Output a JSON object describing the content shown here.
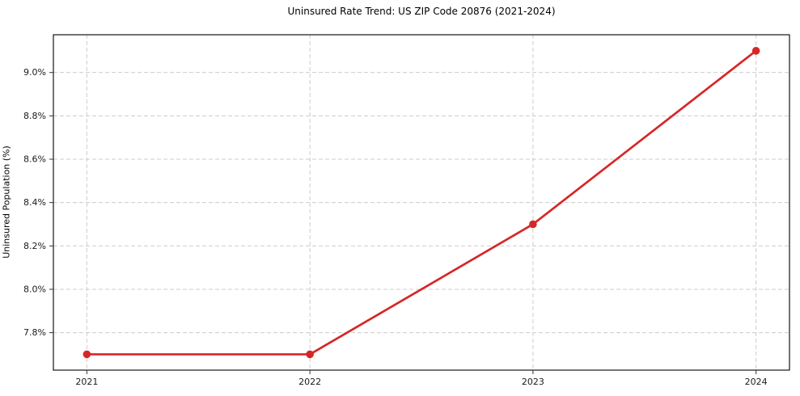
{
  "page": {
    "background": "#ffffff"
  },
  "chart_data": {
    "type": "line",
    "title": "Uninsured Rate Trend: US ZIP Code 20876 (2021-2024)",
    "xlabel": "",
    "ylabel": "Uninsured Population (%)",
    "x": [
      2021,
      2022,
      2023,
      2024
    ],
    "series": [
      {
        "name": "Uninsured Population (%)",
        "values": [
          7.7,
          7.7,
          8.3,
          9.1
        ],
        "color": "#d62728",
        "marker": "circle"
      }
    ],
    "xtick_labels": [
      "2021",
      "2022",
      "2023",
      "2024"
    ],
    "ytick_values": [
      7.8,
      8.0,
      8.2,
      8.4,
      8.6,
      8.8,
      9.0
    ],
    "ytick_labels": [
      "7.8%",
      "8.0%",
      "8.2%",
      "8.4%",
      "8.6%",
      "8.8%",
      "9.0%"
    ],
    "xlim": [
      2020.85,
      2024.15
    ],
    "ylim": [
      7.627,
      9.174
    ],
    "grid": true,
    "grid_style": "dashed",
    "grid_color": "#cccccc",
    "axis_color": "#000000",
    "tick_color": "#333333",
    "text_color": "#1a1a1a",
    "legend_position": "none"
  }
}
